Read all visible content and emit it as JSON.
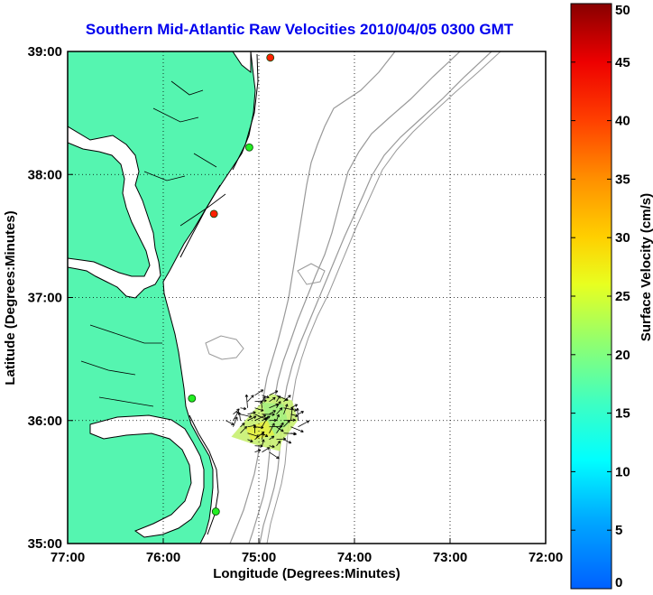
{
  "chart_data": {
    "type": "heatmap",
    "title": "Southern Mid-Atlantic Raw Velocities 2010/04/05 0300 GMT",
    "xlabel": "Longitude (Degrees:Minutes)",
    "ylabel": "Latitude (Degrees:Minutes)",
    "x_ticks": [
      "77:00",
      "76:00",
      "75:00",
      "74:00",
      "73:00",
      "72:00"
    ],
    "y_ticks": [
      "39:00",
      "38:00",
      "37:00",
      "36:00",
      "35:00"
    ],
    "xlim": [
      -77,
      -72
    ],
    "ylim": [
      35,
      39
    ],
    "grid": true,
    "colorbar": {
      "label": "Surface Velocity (cm/s)",
      "range": [
        0,
        50
      ],
      "ticks": [
        "50",
        "45",
        "40",
        "35",
        "30",
        "25",
        "20",
        "15",
        "10",
        "5",
        "0"
      ]
    },
    "stations": [
      {
        "lon": -74.88,
        "lat": 38.95,
        "status": "red"
      },
      {
        "lon": -75.1,
        "lat": 38.22,
        "status": "green"
      },
      {
        "lon": -75.47,
        "lat": 37.68,
        "status": "red"
      },
      {
        "lon": -75.7,
        "lat": 36.18,
        "status": "green"
      },
      {
        "lon": -75.45,
        "lat": 35.26,
        "status": "green"
      }
    ],
    "velocity_region": {
      "lon_range": [
        -75.25,
        -74.65
      ],
      "lat_range": [
        35.78,
        36.22
      ],
      "speed_range_cm_s": [
        10,
        25
      ]
    },
    "colors": {
      "land": "#55f5b0",
      "coast": "#000000",
      "bathymetry": "#999999",
      "grid": "#000000",
      "title": "#0000ee"
    }
  }
}
